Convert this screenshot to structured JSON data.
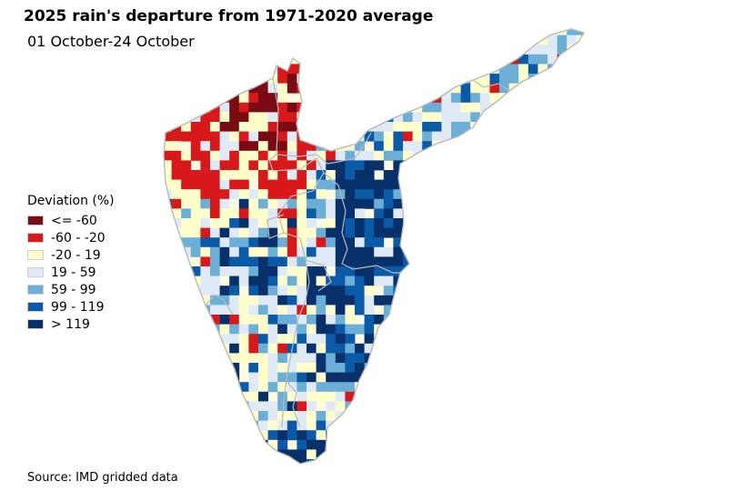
{
  "map": {
    "title": "2025 rain's departure from 1971-2020 average",
    "subtitle": "01 October-24 October",
    "source": "Source: IMD gridded data"
  },
  "legend": {
    "title": "Deviation (%)",
    "items": [
      {
        "label": "<= -60",
        "color": "#7a0a14"
      },
      {
        "label": "-60 - -20",
        "color": "#d7191c"
      },
      {
        "label": "-20 - 19",
        "color": "#ffffcc"
      },
      {
        "label": "19 - 59",
        "color": "#dfeaf6"
      },
      {
        "label": "59 - 99",
        "color": "#6baed6"
      },
      {
        "label": "99 - 119",
        "color": "#0b5aa7"
      },
      {
        "label": "> 119",
        "color": "#08306b"
      }
    ]
  },
  "colors": {
    "background": "#ffffff",
    "boundary": "#b9b9b9",
    "land": "#fffbe0"
  }
}
